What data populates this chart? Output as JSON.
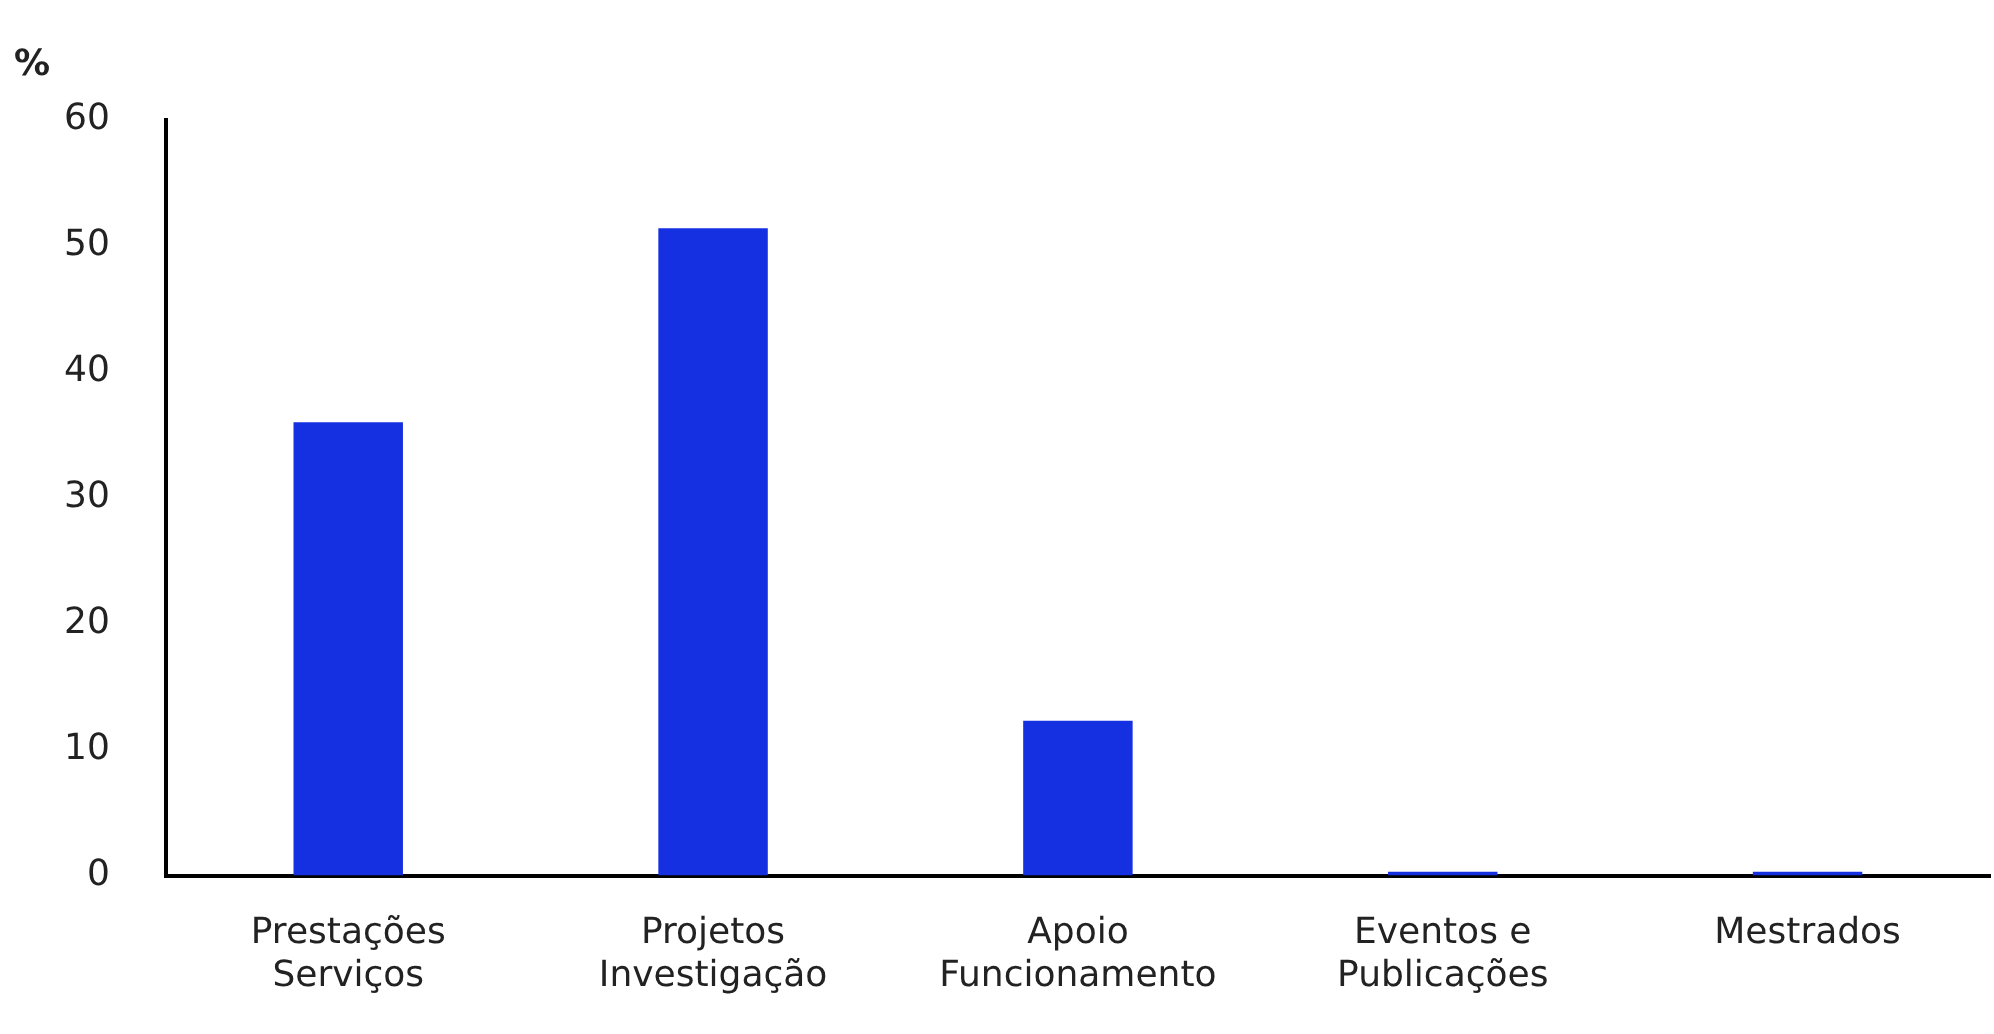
{
  "chart_data": {
    "type": "bar",
    "ylabel": "%",
    "categories": [
      "Prestações\nServiços",
      "Projetos\nInvestigação",
      "Apoio\nFuncionamento",
      "Eventos e\nPublicações",
      "Mestrados"
    ],
    "values": [
      36,
      51.4,
      12.3,
      0.3,
      0.3
    ],
    "color": "#1530e0",
    "ylim": [
      0,
      60
    ],
    "yticks": [
      0,
      10,
      20,
      30,
      40,
      50,
      60
    ],
    "grid": false,
    "legend": false
  }
}
